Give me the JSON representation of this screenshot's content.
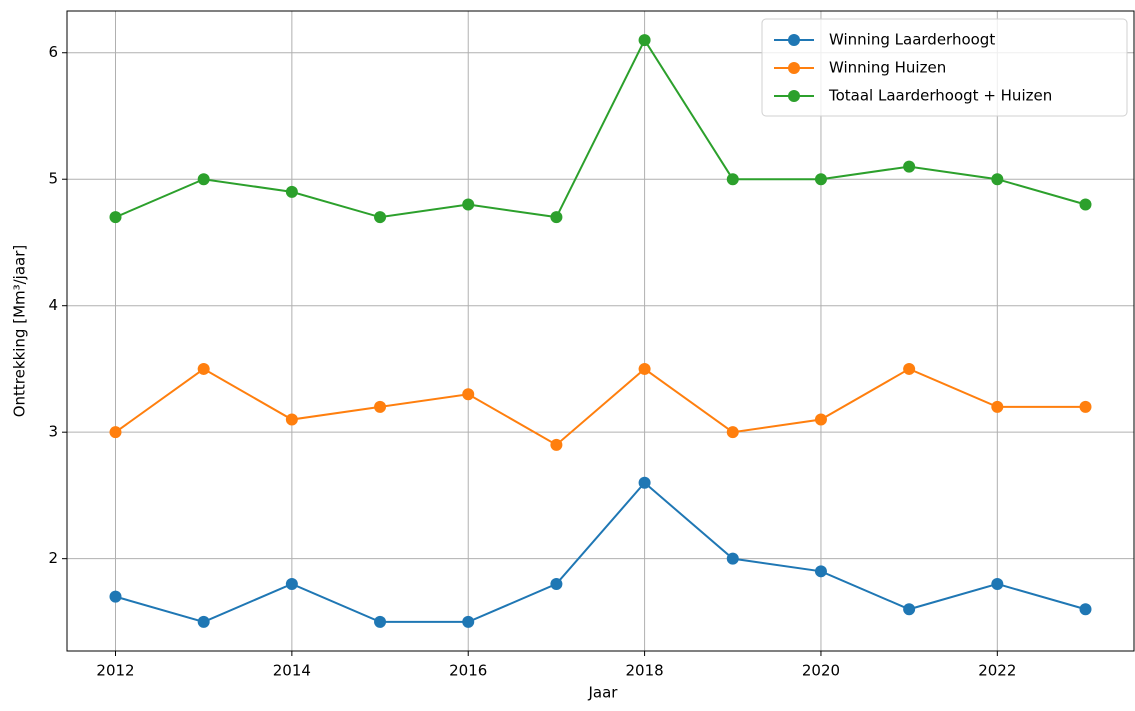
{
  "chart_data": {
    "type": "line",
    "xlabel": "Jaar",
    "ylabel": "Onttrekking [Mm³/jaar]",
    "x": [
      2012,
      2013,
      2014,
      2015,
      2016,
      2017,
      2018,
      2019,
      2020,
      2021,
      2022,
      2023
    ],
    "series": [
      {
        "name": "Winning Laarderhoogt",
        "color": "#1f77b4",
        "values": [
          1.7,
          1.5,
          1.8,
          1.5,
          1.5,
          1.8,
          2.6,
          2.0,
          1.9,
          1.6,
          1.8,
          1.6
        ]
      },
      {
        "name": "Winning Huizen",
        "color": "#ff7f0e",
        "values": [
          3.0,
          3.5,
          3.1,
          3.2,
          3.3,
          2.9,
          3.5,
          3.0,
          3.1,
          3.5,
          3.2,
          3.2
        ]
      },
      {
        "name": "Totaal Laarderhoogt + Huizen",
        "color": "#2ca02c",
        "values": [
          4.7,
          5.0,
          4.9,
          4.7,
          4.8,
          4.7,
          6.1,
          5.0,
          5.0,
          5.1,
          5.0,
          4.8
        ]
      }
    ],
    "xlim": [
      2011.45,
      2023.55
    ],
    "xticks": [
      2012,
      2014,
      2016,
      2018,
      2020,
      2022
    ],
    "ylim": [
      1.27,
      6.33
    ],
    "yticks": [
      2,
      3,
      4,
      5,
      6
    ],
    "grid": true,
    "legend": "upper right"
  }
}
